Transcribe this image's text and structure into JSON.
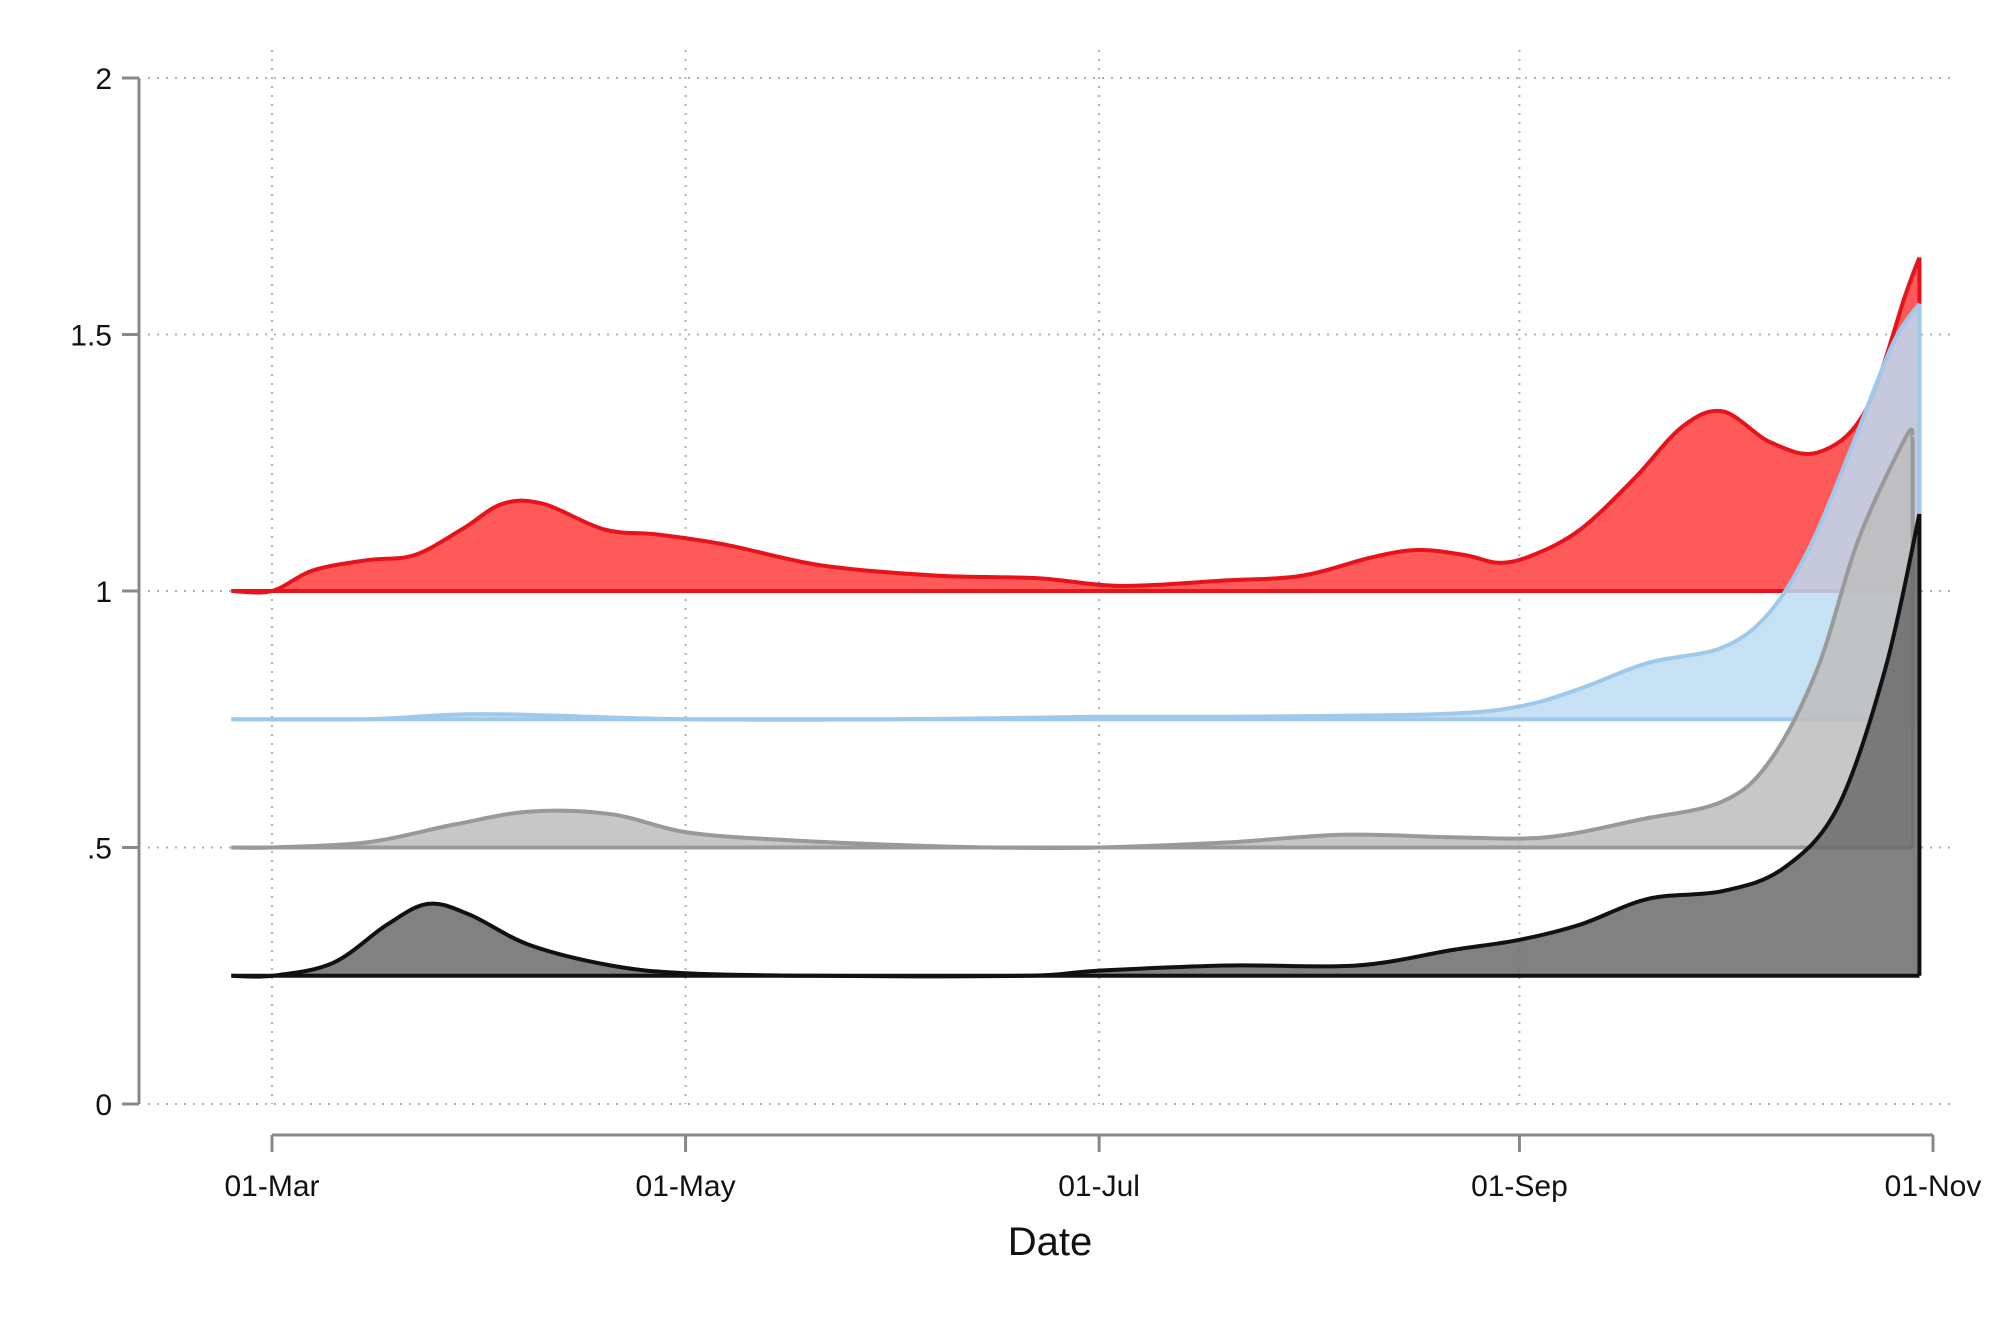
{
  "chart_data": {
    "type": "area",
    "title": "",
    "xlabel": "Date",
    "ylabel": "",
    "x_start": "2020-02-24",
    "xlim": [
      "2020-02-24",
      "2020-10-31"
    ],
    "ylim": [
      0,
      2
    ],
    "x_ticks": [
      {
        "date": "2020-03-01",
        "label": "01-Mar"
      },
      {
        "date": "2020-05-01",
        "label": "01-May"
      },
      {
        "date": "2020-07-01",
        "label": "01-Jul"
      },
      {
        "date": "2020-09-01",
        "label": "01-Sep"
      },
      {
        "date": "2020-11-01",
        "label": "01-Nov"
      }
    ],
    "y_ticks": [
      {
        "value": 0,
        "label": "0"
      },
      {
        "value": 0.5,
        "label": ".5"
      },
      {
        "value": 1,
        "label": "1"
      },
      {
        "value": 1.5,
        "label": "1.5"
      },
      {
        "value": 2,
        "label": "2"
      }
    ],
    "grid": true,
    "legend": "none",
    "series": [
      {
        "baseline": 1.0,
        "fill": "#ff5a5a",
        "stroke": "#e8121a",
        "points": [
          [
            "2020-02-24",
            1.0
          ],
          [
            "2020-03-01",
            1.0
          ],
          [
            "2020-03-07",
            1.04
          ],
          [
            "2020-03-15",
            1.06
          ],
          [
            "2020-03-22",
            1.07
          ],
          [
            "2020-03-29",
            1.12
          ],
          [
            "2020-04-04",
            1.17
          ],
          [
            "2020-04-10",
            1.17
          ],
          [
            "2020-04-19",
            1.12
          ],
          [
            "2020-04-27",
            1.11
          ],
          [
            "2020-05-07",
            1.09
          ],
          [
            "2020-05-21",
            1.05
          ],
          [
            "2020-06-07",
            1.03
          ],
          [
            "2020-06-22",
            1.025
          ],
          [
            "2020-07-04",
            1.01
          ],
          [
            "2020-07-19",
            1.02
          ],
          [
            "2020-07-31",
            1.03
          ],
          [
            "2020-08-10",
            1.065
          ],
          [
            "2020-08-17",
            1.08
          ],
          [
            "2020-08-24",
            1.07
          ],
          [
            "2020-08-29",
            1.055
          ],
          [
            "2020-09-03",
            1.07
          ],
          [
            "2020-09-10",
            1.12
          ],
          [
            "2020-09-18",
            1.22
          ],
          [
            "2020-09-25",
            1.32
          ],
          [
            "2020-10-01",
            1.35
          ],
          [
            "2020-10-08",
            1.29
          ],
          [
            "2020-10-15",
            1.27
          ],
          [
            "2020-10-22",
            1.35
          ],
          [
            "2020-10-28",
            1.58
          ],
          [
            "2020-10-30",
            1.65
          ]
        ]
      },
      {
        "baseline": 0.75,
        "fill": "#bcdcf2",
        "stroke": "#9ec9ea",
        "points": [
          [
            "2020-02-24",
            0.75
          ],
          [
            "2020-03-15",
            0.75
          ],
          [
            "2020-04-01",
            0.76
          ],
          [
            "2020-05-01",
            0.75
          ],
          [
            "2020-06-01",
            0.75
          ],
          [
            "2020-07-01",
            0.755
          ],
          [
            "2020-07-20",
            0.755
          ],
          [
            "2020-08-20",
            0.76
          ],
          [
            "2020-09-01",
            0.775
          ],
          [
            "2020-09-10",
            0.81
          ],
          [
            "2020-09-20",
            0.86
          ],
          [
            "2020-10-01",
            0.89
          ],
          [
            "2020-10-08",
            0.96
          ],
          [
            "2020-10-14",
            1.09
          ],
          [
            "2020-10-20",
            1.28
          ],
          [
            "2020-10-26",
            1.48
          ],
          [
            "2020-10-30",
            1.56
          ]
        ]
      },
      {
        "baseline": 0.5,
        "fill": "#bdbdbd",
        "stroke": "#999999",
        "points": [
          [
            "2020-02-24",
            0.5
          ],
          [
            "2020-03-01",
            0.5
          ],
          [
            "2020-03-15",
            0.51
          ],
          [
            "2020-03-28",
            0.545
          ],
          [
            "2020-04-08",
            0.57
          ],
          [
            "2020-04-20",
            0.565
          ],
          [
            "2020-05-01",
            0.53
          ],
          [
            "2020-05-15",
            0.515
          ],
          [
            "2020-06-01",
            0.505
          ],
          [
            "2020-06-15",
            0.5
          ],
          [
            "2020-07-01",
            0.5
          ],
          [
            "2020-07-20",
            0.51
          ],
          [
            "2020-08-06",
            0.525
          ],
          [
            "2020-08-22",
            0.52
          ],
          [
            "2020-09-05",
            0.52
          ],
          [
            "2020-09-19",
            0.555
          ],
          [
            "2020-10-01",
            0.59
          ],
          [
            "2020-10-08",
            0.67
          ],
          [
            "2020-10-15",
            0.85
          ],
          [
            "2020-10-21",
            1.1
          ],
          [
            "2020-10-28",
            1.3
          ],
          [
            "2020-10-29",
            1.3
          ]
        ]
      },
      {
        "baseline": 0.25,
        "fill": "#6b6b6b",
        "stroke": "#111111",
        "points": [
          [
            "2020-02-24",
            0.25
          ],
          [
            "2020-03-01",
            0.25
          ],
          [
            "2020-03-10",
            0.275
          ],
          [
            "2020-03-18",
            0.35
          ],
          [
            "2020-03-24",
            0.39
          ],
          [
            "2020-03-30",
            0.37
          ],
          [
            "2020-04-08",
            0.31
          ],
          [
            "2020-04-20",
            0.27
          ],
          [
            "2020-05-01",
            0.255
          ],
          [
            "2020-05-20",
            0.25
          ],
          [
            "2020-06-20",
            0.25
          ],
          [
            "2020-07-01",
            0.26
          ],
          [
            "2020-07-20",
            0.27
          ],
          [
            "2020-08-08",
            0.27
          ],
          [
            "2020-08-22",
            0.3
          ],
          [
            "2020-09-01",
            0.32
          ],
          [
            "2020-09-10",
            0.35
          ],
          [
            "2020-09-20",
            0.4
          ],
          [
            "2020-10-01",
            0.415
          ],
          [
            "2020-10-10",
            0.46
          ],
          [
            "2020-10-18",
            0.58
          ],
          [
            "2020-10-25",
            0.85
          ],
          [
            "2020-10-30",
            1.15
          ]
        ]
      }
    ]
  }
}
